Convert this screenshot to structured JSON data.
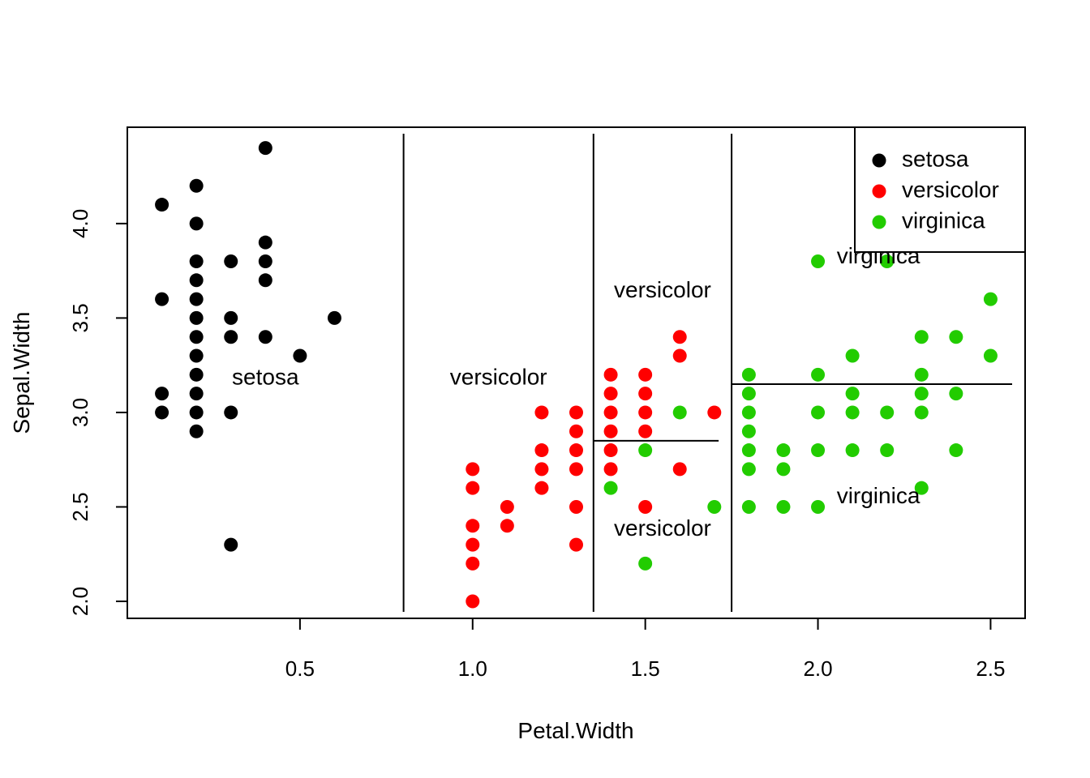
{
  "chart_data": {
    "type": "scatter",
    "title": "",
    "xlabel": "Petal.Width",
    "ylabel": "Sepal.Width",
    "xlim": [
      0.0,
      2.6
    ],
    "ylim": [
      1.91,
      4.51
    ],
    "xticks": [
      {
        "value": 0.5,
        "label": "0.5"
      },
      {
        "value": 1.0,
        "label": "1.0"
      },
      {
        "value": 1.5,
        "label": "1.5"
      },
      {
        "value": 2.0,
        "label": "2.0"
      },
      {
        "value": 2.5,
        "label": "2.5"
      }
    ],
    "yticks": [
      {
        "value": 2.0,
        "label": "2.0"
      },
      {
        "value": 2.5,
        "label": "2.5"
      },
      {
        "value": 3.0,
        "label": "3.0"
      },
      {
        "value": 3.5,
        "label": "3.5"
      },
      {
        "value": 4.0,
        "label": "4.0"
      }
    ],
    "grid": false,
    "legend": {
      "position": "top-right",
      "entries": [
        {
          "label": "setosa",
          "color": "#000000"
        },
        {
          "label": "versicolor",
          "color": "#ff0000"
        },
        {
          "label": "virginica",
          "color": "#22cc00"
        }
      ]
    },
    "series": [
      {
        "name": "setosa",
        "color": "#000000",
        "points": [
          [
            0.1,
            4.1
          ],
          [
            0.1,
            3.6
          ],
          [
            0.1,
            3.1
          ],
          [
            0.1,
            3.0
          ],
          [
            0.2,
            4.2
          ],
          [
            0.2,
            4.0
          ],
          [
            0.2,
            3.8
          ],
          [
            0.2,
            3.7
          ],
          [
            0.2,
            3.6
          ],
          [
            0.2,
            3.5
          ],
          [
            0.2,
            3.4
          ],
          [
            0.2,
            3.3
          ],
          [
            0.2,
            3.2
          ],
          [
            0.2,
            3.1
          ],
          [
            0.2,
            3.0
          ],
          [
            0.2,
            2.9
          ],
          [
            0.3,
            3.8
          ],
          [
            0.3,
            3.5
          ],
          [
            0.3,
            3.4
          ],
          [
            0.3,
            3.0
          ],
          [
            0.3,
            2.3
          ],
          [
            0.4,
            4.4
          ],
          [
            0.4,
            3.9
          ],
          [
            0.4,
            3.8
          ],
          [
            0.4,
            3.7
          ],
          [
            0.4,
            3.4
          ],
          [
            0.5,
            3.3
          ],
          [
            0.6,
            3.5
          ]
        ]
      },
      {
        "name": "versicolor",
        "color": "#ff0000",
        "points": [
          [
            1.0,
            2.7
          ],
          [
            1.0,
            2.6
          ],
          [
            1.0,
            2.4
          ],
          [
            1.0,
            2.3
          ],
          [
            1.0,
            2.2
          ],
          [
            1.0,
            2.0
          ],
          [
            1.1,
            2.5
          ],
          [
            1.1,
            2.4
          ],
          [
            1.2,
            3.0
          ],
          [
            1.2,
            2.8
          ],
          [
            1.2,
            2.7
          ],
          [
            1.2,
            2.6
          ],
          [
            1.3,
            3.0
          ],
          [
            1.3,
            2.9
          ],
          [
            1.3,
            2.8
          ],
          [
            1.3,
            2.7
          ],
          [
            1.3,
            2.5
          ],
          [
            1.3,
            2.3
          ],
          [
            1.4,
            3.2
          ],
          [
            1.4,
            3.1
          ],
          [
            1.4,
            3.0
          ],
          [
            1.4,
            2.9
          ],
          [
            1.4,
            2.8
          ],
          [
            1.4,
            2.7
          ],
          [
            1.5,
            3.2
          ],
          [
            1.5,
            3.1
          ],
          [
            1.5,
            3.0
          ],
          [
            1.5,
            2.9
          ],
          [
            1.5,
            2.5
          ],
          [
            1.6,
            3.4
          ],
          [
            1.6,
            3.3
          ],
          [
            1.6,
            2.7
          ],
          [
            1.7,
            3.0
          ]
        ]
      },
      {
        "name": "virginica",
        "color": "#22cc00",
        "points": [
          [
            1.4,
            2.6
          ],
          [
            1.5,
            2.8
          ],
          [
            1.5,
            2.2
          ],
          [
            1.6,
            3.0
          ],
          [
            1.7,
            2.5
          ],
          [
            1.8,
            3.2
          ],
          [
            1.8,
            3.1
          ],
          [
            1.8,
            3.0
          ],
          [
            1.8,
            2.9
          ],
          [
            1.8,
            2.8
          ],
          [
            1.8,
            2.7
          ],
          [
            1.8,
            2.5
          ],
          [
            1.9,
            2.8
          ],
          [
            1.9,
            2.7
          ],
          [
            1.9,
            2.5
          ],
          [
            2.0,
            3.8
          ],
          [
            2.0,
            3.2
          ],
          [
            2.0,
            3.0
          ],
          [
            2.0,
            2.8
          ],
          [
            2.0,
            2.5
          ],
          [
            2.1,
            3.3
          ],
          [
            2.1,
            3.1
          ],
          [
            2.1,
            3.0
          ],
          [
            2.1,
            2.8
          ],
          [
            2.2,
            3.8
          ],
          [
            2.2,
            3.0
          ],
          [
            2.2,
            2.8
          ],
          [
            2.3,
            3.4
          ],
          [
            2.3,
            3.2
          ],
          [
            2.3,
            3.1
          ],
          [
            2.3,
            3.0
          ],
          [
            2.3,
            2.6
          ],
          [
            2.4,
            3.4
          ],
          [
            2.4,
            3.1
          ],
          [
            2.4,
            2.8
          ],
          [
            2.5,
            3.6
          ],
          [
            2.5,
            3.3
          ]
        ]
      }
    ],
    "partition_lines": [
      {
        "orientation": "vertical",
        "x": 0.8,
        "y_from": 1.91,
        "y_to": 4.51
      },
      {
        "orientation": "vertical",
        "x": 1.35,
        "y_from": 1.91,
        "y_to": 4.51
      },
      {
        "orientation": "vertical",
        "x": 1.75,
        "y_from": 1.91,
        "y_to": 4.51
      },
      {
        "orientation": "horizontal",
        "y": 2.85,
        "x_from": 1.35,
        "x_to": 1.75
      },
      {
        "orientation": "horizontal",
        "y": 3.15,
        "x_from": 1.75,
        "x_to": 2.6
      }
    ],
    "region_labels": [
      {
        "text": "setosa",
        "x": 0.4,
        "y": 3.18
      },
      {
        "text": "versicolor",
        "x": 1.075,
        "y": 3.18
      },
      {
        "text": "versicolor",
        "x": 1.55,
        "y": 3.64
      },
      {
        "text": "versicolor",
        "x": 1.55,
        "y": 2.38
      },
      {
        "text": "virginica",
        "x": 2.175,
        "y": 3.82
      },
      {
        "text": "virginica",
        "x": 2.175,
        "y": 2.55
      }
    ]
  }
}
